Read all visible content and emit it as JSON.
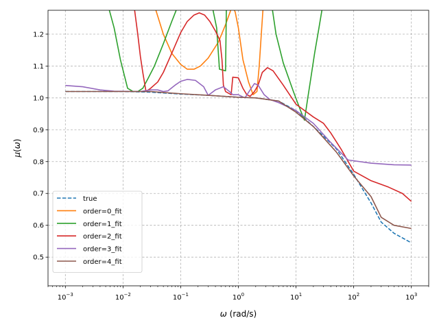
{
  "chart_data": {
    "type": "line",
    "xscale": "log",
    "xlabel_parts": [
      "ω",
      " (rad/s)"
    ],
    "ylabel_parts": [
      "μ",
      "(",
      "ω",
      ")"
    ],
    "xlim": [
      0.0005,
      2000
    ],
    "ylim": [
      0.41,
      1.275
    ],
    "x_ticks": [
      0.001,
      0.01,
      0.1,
      1,
      10,
      100,
      1000
    ],
    "x_tick_labels": [
      {
        "base": "10",
        "exp": "−3"
      },
      {
        "base": "10",
        "exp": "−2"
      },
      {
        "base": "10",
        "exp": "−1"
      },
      {
        "base": "10",
        "exp": "0"
      },
      {
        "base": "10",
        "exp": "1"
      },
      {
        "base": "10",
        "exp": "2"
      },
      {
        "base": "10",
        "exp": "3"
      }
    ],
    "y_ticks": [
      0.5,
      0.6,
      0.7,
      0.8,
      0.9,
      1.0,
      1.1,
      1.2
    ],
    "y_tick_labels": [
      "0.5",
      "0.6",
      "0.7",
      "0.8",
      "0.9",
      "1.0",
      "1.1",
      "1.2"
    ],
    "grid": true,
    "legend_position": "lower-left",
    "series": [
      {
        "name": "true",
        "color": "#1f77b4",
        "dashed": true,
        "points": [
          [
            0.001,
            1.02
          ],
          [
            0.01,
            1.02
          ],
          [
            0.03,
            1.018
          ],
          [
            0.1,
            1.012
          ],
          [
            0.3,
            1.008
          ],
          [
            1,
            1.002
          ],
          [
            2,
            1.0
          ],
          [
            5,
            0.99
          ],
          [
            10,
            0.96
          ],
          [
            20,
            0.91
          ],
          [
            30,
            0.88
          ],
          [
            50,
            0.84
          ],
          [
            100,
            0.76
          ],
          [
            200,
            0.67
          ],
          [
            300,
            0.61
          ],
          [
            500,
            0.575
          ],
          [
            1000,
            0.545
          ]
        ]
      },
      {
        "name": "order=0_fit",
        "color": "#ff7f0e",
        "dashed": false,
        "points": [
          [
            0.035,
            1.29
          ],
          [
            0.05,
            1.2
          ],
          [
            0.07,
            1.14
          ],
          [
            0.1,
            1.105
          ],
          [
            0.13,
            1.09
          ],
          [
            0.17,
            1.09
          ],
          [
            0.22,
            1.1
          ],
          [
            0.3,
            1.125
          ],
          [
            0.45,
            1.175
          ],
          [
            0.6,
            1.23
          ],
          [
            0.72,
            1.27
          ],
          [
            0.78,
            1.29
          ],
          [
            0.88,
            1.27
          ],
          [
            1.0,
            1.22
          ],
          [
            1.2,
            1.12
          ],
          [
            1.5,
            1.05
          ],
          [
            1.8,
            1.01
          ],
          [
            2.1,
            1.02
          ],
          [
            2.3,
            1.1
          ],
          [
            2.5,
            1.2
          ],
          [
            2.7,
            1.29
          ]
        ]
      },
      {
        "name": "order=1_fit",
        "color": "#2ca02c",
        "dashed": false,
        "points": [
          [
            0.0055,
            1.29
          ],
          [
            0.007,
            1.22
          ],
          [
            0.009,
            1.12
          ],
          [
            0.012,
            1.03
          ],
          [
            0.015,
            1.02
          ],
          [
            0.018,
            1.02
          ],
          [
            0.022,
            1.03
          ],
          [
            0.027,
            1.06
          ],
          [
            0.035,
            1.1
          ],
          [
            0.05,
            1.17
          ],
          [
            0.07,
            1.24
          ],
          [
            0.09,
            1.29
          ],
          [
            0.35,
            1.29
          ],
          [
            0.42,
            1.22
          ],
          [
            0.47,
            1.09
          ],
          [
            0.6,
            1.085
          ],
          [
            0.62,
            1.29
          ],
          [
            3.8,
            1.29
          ],
          [
            4.5,
            1.2
          ],
          [
            6,
            1.11
          ],
          [
            9,
            1.02
          ],
          [
            12,
            0.96
          ],
          [
            14,
            0.93
          ],
          [
            16,
            1.0
          ],
          [
            18,
            1.06
          ],
          [
            21,
            1.14
          ],
          [
            25,
            1.22
          ],
          [
            29,
            1.29
          ]
        ]
      },
      {
        "name": "order=2_fit",
        "color": "#d62728",
        "dashed": false,
        "points": [
          [
            0.0155,
            1.29
          ],
          [
            0.018,
            1.2
          ],
          [
            0.02,
            1.13
          ],
          [
            0.022,
            1.08
          ],
          [
            0.025,
            1.02
          ],
          [
            0.03,
            1.03
          ],
          [
            0.04,
            1.05
          ],
          [
            0.05,
            1.08
          ],
          [
            0.07,
            1.14
          ],
          [
            0.1,
            1.205
          ],
          [
            0.13,
            1.24
          ],
          [
            0.17,
            1.26
          ],
          [
            0.21,
            1.267
          ],
          [
            0.26,
            1.26
          ],
          [
            0.32,
            1.24
          ],
          [
            0.4,
            1.21
          ],
          [
            0.48,
            1.18
          ],
          [
            0.52,
            1.12
          ],
          [
            0.55,
            1.04
          ],
          [
            0.6,
            1.02
          ],
          [
            0.75,
            1.01
          ],
          [
            0.8,
            1.065
          ],
          [
            1.0,
            1.063
          ],
          [
            1.2,
            1.03
          ],
          [
            1.4,
            1.01
          ],
          [
            1.6,
            1.005
          ],
          [
            1.9,
            1.02
          ],
          [
            2.2,
            1.04
          ],
          [
            2.6,
            1.08
          ],
          [
            3.2,
            1.095
          ],
          [
            4.0,
            1.085
          ],
          [
            6,
            1.04
          ],
          [
            10,
            0.98
          ],
          [
            20,
            0.94
          ],
          [
            30,
            0.92
          ],
          [
            40,
            0.89
          ],
          [
            60,
            0.84
          ],
          [
            100,
            0.77
          ],
          [
            200,
            0.74
          ],
          [
            400,
            0.72
          ],
          [
            700,
            0.7
          ],
          [
            1000,
            0.675
          ]
        ]
      },
      {
        "name": "order=3_fit",
        "color": "#9467bd",
        "dashed": false,
        "points": [
          [
            0.001,
            1.039
          ],
          [
            0.002,
            1.035
          ],
          [
            0.004,
            1.025
          ],
          [
            0.007,
            1.021
          ],
          [
            0.02,
            1.02
          ],
          [
            0.03,
            1.025
          ],
          [
            0.04,
            1.025
          ],
          [
            0.05,
            1.02
          ],
          [
            0.06,
            1.022
          ],
          [
            0.08,
            1.04
          ],
          [
            0.1,
            1.052
          ],
          [
            0.13,
            1.058
          ],
          [
            0.18,
            1.055
          ],
          [
            0.25,
            1.035
          ],
          [
            0.3,
            1.008
          ],
          [
            0.4,
            1.025
          ],
          [
            0.55,
            1.035
          ],
          [
            0.7,
            1.02
          ],
          [
            0.8,
            1.01
          ],
          [
            1.0,
            1.01
          ],
          [
            1.3,
            1.0
          ],
          [
            1.6,
            1.025
          ],
          [
            1.9,
            1.045
          ],
          [
            2.2,
            1.04
          ],
          [
            2.8,
            1.01
          ],
          [
            3.5,
            0.995
          ],
          [
            5,
            0.985
          ],
          [
            10,
            0.96
          ],
          [
            20,
            0.92
          ],
          [
            40,
            0.86
          ],
          [
            80,
            0.805
          ],
          [
            200,
            0.795
          ],
          [
            500,
            0.79
          ],
          [
            1000,
            0.789
          ]
        ]
      },
      {
        "name": "order=4_fit",
        "color": "#8c564b",
        "dashed": false,
        "points": [
          [
            0.001,
            1.02
          ],
          [
            0.01,
            1.02
          ],
          [
            0.03,
            1.02
          ],
          [
            0.1,
            1.013
          ],
          [
            0.3,
            1.008
          ],
          [
            1,
            1.002
          ],
          [
            2,
            1.0
          ],
          [
            5,
            0.99
          ],
          [
            10,
            0.955
          ],
          [
            20,
            0.91
          ],
          [
            30,
            0.875
          ],
          [
            50,
            0.83
          ],
          [
            100,
            0.755
          ],
          [
            200,
            0.69
          ],
          [
            300,
            0.625
          ],
          [
            500,
            0.6
          ],
          [
            1000,
            0.59
          ]
        ]
      }
    ]
  }
}
